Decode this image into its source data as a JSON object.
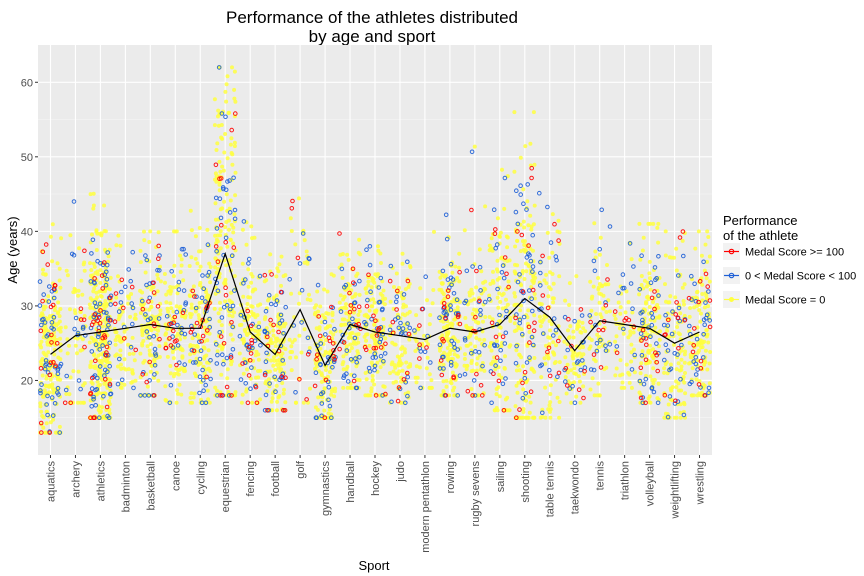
{
  "chart_data": {
    "type": "scatter",
    "title_line1": "Performance of the athletes distributed",
    "title_line2": "by age and sport",
    "xlabel": "Sport",
    "ylabel": "Age (years)",
    "ylim": [
      10,
      65
    ],
    "yticks": [
      20,
      30,
      40,
      50,
      60
    ],
    "categories": [
      "aquatics",
      "archery",
      "athletics",
      "badminton",
      "basketball",
      "canoe",
      "cycling",
      "equestrian",
      "fencing",
      "football",
      "golf",
      "gymnastics",
      "handball",
      "hockey",
      "judo",
      "modern pentathlon",
      "rowing",
      "rugby sevens",
      "sailing",
      "shooting",
      "table tennis",
      "taekwondo",
      "tennis",
      "triathlon",
      "volleyball",
      "weightlifting",
      "wrestling"
    ],
    "mean_age": [
      23.5,
      26,
      26.5,
      27,
      27.5,
      27,
      27,
      37,
      26.5,
      23.5,
      29.5,
      22,
      27.5,
      26.5,
      26,
      25.5,
      27,
      26.5,
      27.5,
      31,
      28.5,
      24,
      28,
      27.5,
      27,
      25,
      26.5
    ],
    "spread": [
      {
        "min": 13,
        "max": 41,
        "q1": 19,
        "q3": 28
      },
      {
        "min": 17,
        "max": 44,
        "q1": 22,
        "q3": 31
      },
      {
        "min": 15,
        "max": 46,
        "q1": 22,
        "q3": 31
      },
      {
        "min": 19,
        "max": 40,
        "q1": 24,
        "q3": 30
      },
      {
        "min": 18,
        "max": 40,
        "q1": 24,
        "q3": 31
      },
      {
        "min": 17,
        "max": 40,
        "q1": 23,
        "q3": 30
      },
      {
        "min": 17,
        "max": 45,
        "q1": 23,
        "q3": 31
      },
      {
        "min": 18,
        "max": 62,
        "q1": 28,
        "q3": 45
      },
      {
        "min": 17,
        "max": 42,
        "q1": 23,
        "q3": 30
      },
      {
        "min": 16,
        "max": 38,
        "q1": 20,
        "q3": 27
      },
      {
        "min": 17,
        "max": 46,
        "q1": 24,
        "q3": 35
      },
      {
        "min": 15,
        "max": 35,
        "q1": 18,
        "q3": 25
      },
      {
        "min": 19,
        "max": 43,
        "q1": 24,
        "q3": 31
      },
      {
        "min": 18,
        "max": 38,
        "q1": 23,
        "q3": 30
      },
      {
        "min": 17,
        "max": 37,
        "q1": 22,
        "q3": 29
      },
      {
        "min": 19,
        "max": 41,
        "q1": 23,
        "q3": 29
      },
      {
        "min": 18,
        "max": 55,
        "q1": 23,
        "q3": 31
      },
      {
        "min": 18,
        "max": 54,
        "q1": 23,
        "q3": 30
      },
      {
        "min": 16,
        "max": 50,
        "q1": 22,
        "q3": 32
      },
      {
        "min": 15,
        "max": 56,
        "q1": 24,
        "q3": 38
      },
      {
        "min": 15,
        "max": 55,
        "q1": 22,
        "q3": 33
      },
      {
        "min": 17,
        "max": 34,
        "q1": 21,
        "q3": 27
      },
      {
        "min": 18,
        "max": 43,
        "q1": 24,
        "q3": 31
      },
      {
        "min": 19,
        "max": 40,
        "q1": 24,
        "q3": 31
      },
      {
        "min": 17,
        "max": 41,
        "q1": 23,
        "q3": 31
      },
      {
        "min": 15,
        "max": 40,
        "q1": 20,
        "q3": 29
      },
      {
        "min": 18,
        "max": 40,
        "q1": 22,
        "q3": 29
      }
    ],
    "points_per_sport": [
      150,
      40,
      220,
      50,
      90,
      80,
      100,
      140,
      80,
      100,
      30,
      90,
      90,
      100,
      70,
      25,
      120,
      70,
      80,
      120,
      60,
      50,
      50,
      35,
      100,
      80,
      90
    ],
    "series": [
      {
        "name": "Medal Score >= 100",
        "color": "#F8766D",
        "outline": "#FF0000",
        "share": 0.08
      },
      {
        "name": "0 < Medal Score < 100",
        "color": "#6FA8FF",
        "outline": "#1E5FD6",
        "share": 0.18
      },
      {
        "name": "Medal Score = 0",
        "color": "#FFFF40",
        "outline": "#FFFF00",
        "share": 0.74
      }
    ],
    "mean_line_color": "#000000",
    "legend_title_line1": "Performance",
    "legend_title_line2": "of the athlete",
    "legend_position": "right",
    "grid": true
  }
}
